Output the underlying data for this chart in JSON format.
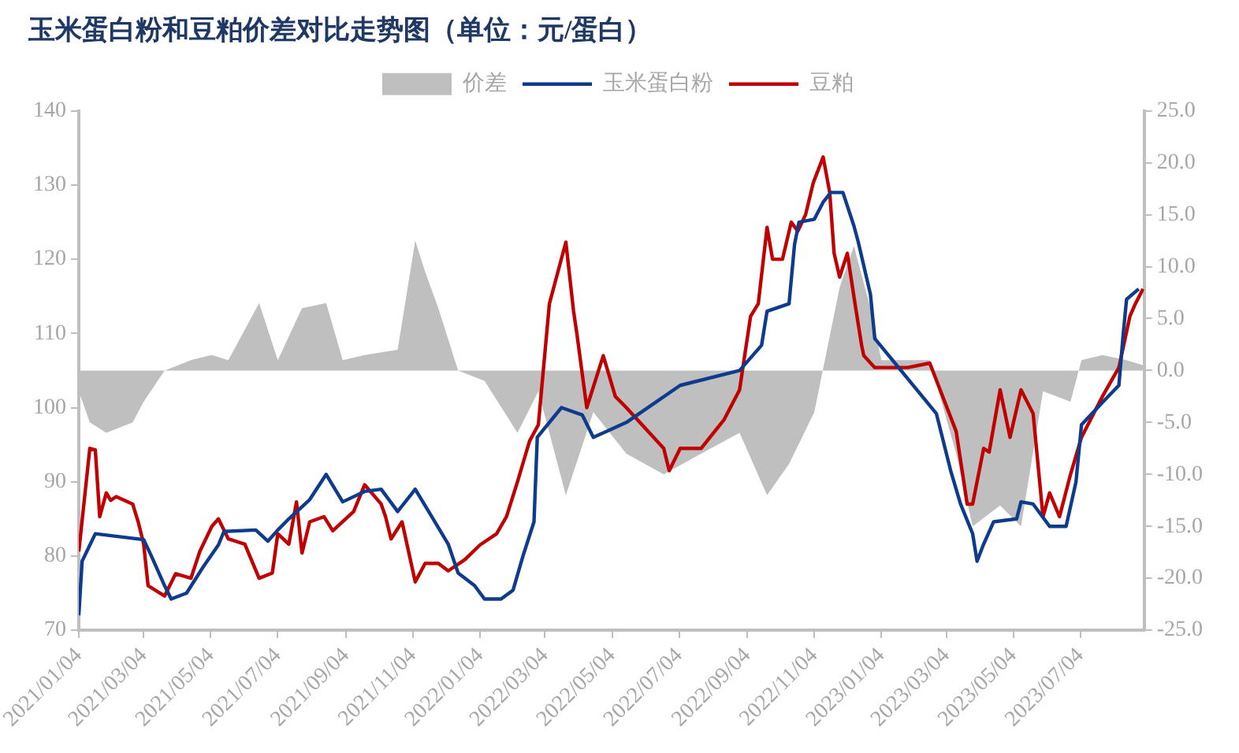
{
  "chart_data": {
    "type": "line",
    "title": "玉米蛋白粉和豆粕价差对比走势图（单位：元/蛋白）",
    "legend": "top",
    "marker": "none",
    "xlim": [
      "2021-01-04",
      "2023-08-31"
    ],
    "xticks": [
      {
        "value": "2021-01-04",
        "label": "2021/01/04"
      },
      {
        "value": "2021-03-04",
        "label": "2021/03/04"
      },
      {
        "value": "2021-05-04",
        "label": "2021/05/04"
      },
      {
        "value": "2021-07-04",
        "label": "2021/07/04"
      },
      {
        "value": "2021-09-04",
        "label": "2021/09/04"
      },
      {
        "value": "2021-11-04",
        "label": "2021/11/04"
      },
      {
        "value": "2022-01-04",
        "label": "2022/01/04"
      },
      {
        "value": "2022-03-04",
        "label": "2022/03/04"
      },
      {
        "value": "2022-05-04",
        "label": "2022/05/04"
      },
      {
        "value": "2022-07-04",
        "label": "2022/07/04"
      },
      {
        "value": "2022-09-04",
        "label": "2022/09/04"
      },
      {
        "value": "2022-11-04",
        "label": "2022/11/04"
      },
      {
        "value": "2023-01-04",
        "label": "2023/01/04"
      },
      {
        "value": "2023-03-04",
        "label": "2023/03/04"
      },
      {
        "value": "2023-05-04",
        "label": "2023/05/04"
      },
      {
        "value": "2023-07-04",
        "label": "2023/07/04"
      }
    ],
    "ylim": [
      70,
      140
    ],
    "yticks": [
      70,
      80,
      90,
      100,
      110,
      120,
      130,
      140
    ],
    "y2lim": [
      -25,
      25
    ],
    "y2ticks": [
      {
        "value": -25,
        "label": "-25.0"
      },
      {
        "value": -20,
        "label": "-20.0"
      },
      {
        "value": -15,
        "label": "-15.0"
      },
      {
        "value": -10,
        "label": "-10.0"
      },
      {
        "value": -5,
        "label": "-5.0"
      },
      {
        "value": 0,
        "label": "0.0"
      },
      {
        "value": 5,
        "label": "5.0"
      },
      {
        "value": 10,
        "label": "10.0"
      },
      {
        "value": 15,
        "label": "15.0"
      },
      {
        "value": 20,
        "label": "20.0"
      },
      {
        "value": 25,
        "label": "25.0"
      }
    ],
    "series": [
      {
        "name": "价差",
        "type": "area",
        "axis": "y2",
        "color": "#bfbfbf",
        "x": [
          "2021-01-04",
          "2021-01-14",
          "2021-01-29",
          "2021-02-22",
          "2021-03-04",
          "2021-03-23",
          "2021-04-16",
          "2021-05-05",
          "2021-05-20",
          "2021-06-17",
          "2021-07-04",
          "2021-07-26",
          "2021-08-17",
          "2021-09-01",
          "2021-09-21",
          "2021-10-21",
          "2021-11-06",
          "2021-11-15",
          "2021-11-27",
          "2021-12-15",
          "2022-01-08",
          "2022-02-07",
          "2022-02-26",
          "2022-03-23",
          "2022-04-17",
          "2022-05-17",
          "2022-06-20",
          "2022-07-24",
          "2022-08-28",
          "2022-09-22",
          "2022-10-12",
          "2022-11-04",
          "2022-11-27",
          "2022-12-10",
          "2022-12-25",
          "2023-01-04",
          "2023-02-17",
          "2023-03-13",
          "2023-03-28",
          "2023-04-22",
          "2023-05-11",
          "2023-05-31",
          "2023-06-25",
          "2023-07-05",
          "2023-07-24",
          "2023-08-15",
          "2023-08-30"
        ],
        "values": [
          -2,
          -5,
          -6,
          -5,
          -3,
          0,
          1,
          1.5,
          1,
          6.5,
          1,
          6,
          6.5,
          1,
          1.5,
          2,
          12.5,
          9.5,
          6,
          0,
          -1,
          -6,
          -2,
          -12,
          -4,
          -8,
          -10,
          -8,
          -6,
          -12,
          -9,
          -4,
          8,
          12,
          6,
          1,
          1,
          -8,
          -15,
          -13,
          -15,
          -2,
          -3,
          1,
          1.5,
          1,
          0.5
        ]
      },
      {
        "name": "玉米蛋白粉",
        "color": "#0f3b8c",
        "x": [
          "2021-01-04",
          "2021-01-07",
          "2021-01-19",
          "2021-03-04",
          "2021-03-11",
          "2021-03-23",
          "2021-03-29",
          "2021-04-12",
          "2021-04-27",
          "2021-05-11",
          "2021-05-16",
          "2021-06-14",
          "2021-06-25",
          "2021-07-04",
          "2021-07-14",
          "2021-08-02",
          "2021-08-17",
          "2021-09-01",
          "2021-09-21",
          "2021-10-06",
          "2021-10-21",
          "2021-11-06",
          "2021-11-21",
          "2021-12-06",
          "2021-12-15",
          "2021-12-30",
          "2022-01-08",
          "2022-01-23",
          "2022-02-03",
          "2022-02-12",
          "2022-02-22",
          "2022-02-25",
          "2022-03-19",
          "2022-04-07",
          "2022-04-17",
          "2022-05-17",
          "2022-07-05",
          "2022-08-28",
          "2022-09-17",
          "2022-09-22",
          "2022-10-12",
          "2022-10-17",
          "2022-10-21",
          "2022-11-04",
          "2022-11-12",
          "2022-11-19",
          "2022-11-30",
          "2022-12-10",
          "2022-12-14",
          "2022-12-25",
          "2022-12-29",
          "2023-02-23",
          "2023-03-08",
          "2023-03-17",
          "2023-03-28",
          "2023-04-01",
          "2023-04-07",
          "2023-04-16",
          "2023-05-07",
          "2023-05-11",
          "2023-05-22",
          "2023-06-06",
          "2023-06-21",
          "2023-06-30",
          "2023-07-05",
          "2023-07-24",
          "2023-08-08",
          "2023-08-12",
          "2023-08-15",
          "2023-08-26"
        ],
        "values": [
          72,
          79.3,
          83,
          82.2,
          80,
          76,
          74.2,
          75,
          78.5,
          81.5,
          83.3,
          83.5,
          82,
          83.5,
          85,
          87.6,
          91,
          87.3,
          88.7,
          89,
          86,
          89,
          85.3,
          81.6,
          77.7,
          76,
          74.2,
          74.2,
          75.4,
          80,
          84.6,
          96,
          100,
          99,
          96,
          98,
          103,
          105,
          108.4,
          113,
          114,
          122,
          125,
          125.4,
          127.7,
          129,
          129,
          124.5,
          122.3,
          115.3,
          109.3,
          99.2,
          91.5,
          87,
          83,
          79.3,
          81.6,
          84.6,
          85,
          87.3,
          87,
          84,
          84,
          90,
          97.7,
          100.7,
          103,
          110,
          114.6,
          116
        ]
      },
      {
        "name": "豆粕",
        "color": "#c00000",
        "x": [
          "2021-01-04",
          "2021-01-14",
          "2021-01-19",
          "2021-01-23",
          "2021-01-29",
          "2021-02-02",
          "2021-02-07",
          "2021-02-22",
          "2021-02-27",
          "2021-03-04",
          "2021-03-08",
          "2021-03-23",
          "2021-04-02",
          "2021-04-16",
          "2021-04-24",
          "2021-05-05",
          "2021-05-11",
          "2021-05-20",
          "2021-06-04",
          "2021-06-17",
          "2021-06-29",
          "2021-07-04",
          "2021-07-14",
          "2021-07-21",
          "2021-07-26",
          "2021-08-02",
          "2021-08-15",
          "2021-08-23",
          "2021-09-11",
          "2021-09-21",
          "2021-10-06",
          "2021-10-10",
          "2021-10-15",
          "2021-10-25",
          "2021-11-06",
          "2021-11-15",
          "2021-11-27",
          "2021-12-06",
          "2021-12-21",
          "2022-01-04",
          "2022-01-19",
          "2022-01-28",
          "2022-02-07",
          "2022-02-18",
          "2022-02-26",
          "2022-03-08",
          "2022-03-23",
          "2022-03-30",
          "2022-04-02",
          "2022-04-11",
          "2022-04-26",
          "2022-05-07",
          "2022-05-17",
          "2022-06-20",
          "2022-06-25",
          "2022-07-05",
          "2022-07-24",
          "2022-08-14",
          "2022-08-28",
          "2022-09-07",
          "2022-09-14",
          "2022-09-22",
          "2022-09-27",
          "2022-10-06",
          "2022-10-14",
          "2022-10-20",
          "2022-10-27",
          "2022-11-03",
          "2022-11-10",
          "2022-11-12",
          "2022-11-18",
          "2022-11-22",
          "2022-11-27",
          "2022-12-04",
          "2022-12-11",
          "2022-12-17",
          "2022-12-19",
          "2022-12-29",
          "2023-01-28",
          "2023-02-17",
          "2023-03-13",
          "2023-03-23",
          "2023-03-28",
          "2023-04-07",
          "2023-04-12",
          "2023-04-22",
          "2023-05-01",
          "2023-05-11",
          "2023-05-22",
          "2023-05-31",
          "2023-06-06",
          "2023-06-15",
          "2023-06-25",
          "2023-07-05",
          "2023-07-24",
          "2023-08-08",
          "2023-08-18",
          "2023-08-23",
          "2023-08-30"
        ],
        "values": [
          80.6,
          94.5,
          94.3,
          85.3,
          88.5,
          87.5,
          88,
          87,
          84.6,
          81.6,
          76,
          74.6,
          77.6,
          77,
          80.6,
          84,
          85,
          82.3,
          81.6,
          77,
          77.7,
          83,
          81.6,
          87.3,
          80.4,
          84.6,
          85.3,
          83.4,
          86,
          89.6,
          87,
          85.3,
          82.3,
          84.6,
          76.5,
          79,
          79,
          78,
          79.5,
          81.5,
          83,
          85.3,
          90,
          95.5,
          97.7,
          114,
          122.3,
          113,
          110,
          100,
          107,
          101.5,
          100,
          94.5,
          91.5,
          94.5,
          94.5,
          98.4,
          102.4,
          112.3,
          114,
          124.3,
          120,
          120,
          125,
          123.8,
          126,
          130.3,
          133,
          133.8,
          129,
          120.8,
          117.6,
          120.8,
          114,
          108.4,
          107,
          105.4,
          105.4,
          106,
          96.8,
          87,
          87,
          94.5,
          94,
          102.4,
          96,
          102.4,
          99.2,
          85.3,
          88.5,
          85.3,
          91,
          96,
          101.5,
          105.4,
          112.3,
          114,
          116
        ]
      }
    ]
  }
}
